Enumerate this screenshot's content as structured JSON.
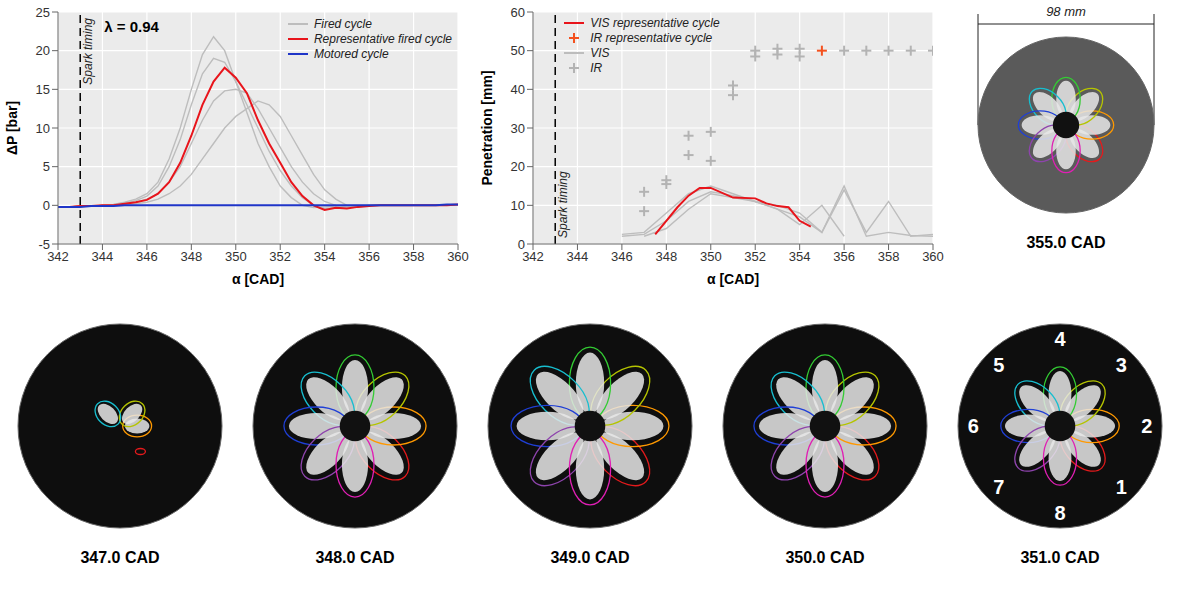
{
  "chart_data": [
    {
      "type": "line",
      "xlabel": "α [CAD]",
      "ylabel": "ΔP [bar]",
      "xlim": [
        342,
        360
      ],
      "xticks": [
        342,
        344,
        346,
        348,
        350,
        352,
        354,
        356,
        358,
        360
      ],
      "ylim": [
        -5,
        25
      ],
      "yticks": [
        -5,
        0,
        5,
        10,
        15,
        20,
        25
      ],
      "grid": true,
      "legend": "upper right",
      "annotations": [
        {
          "text": "λ = 0.94"
        },
        {
          "text": "Spark timing",
          "x": 343
        }
      ],
      "x": [
        342,
        342.5,
        343,
        343.5,
        344,
        344.5,
        345,
        345.5,
        346,
        346.5,
        347,
        347.5,
        348,
        348.5,
        349,
        349.5,
        350,
        350.5,
        351,
        351.5,
        352,
        352.5,
        353,
        353.5,
        354,
        354.5,
        355,
        355.5,
        356,
        356.5,
        357,
        357.5,
        358,
        358.5,
        359,
        359.5,
        360
      ],
      "series": [
        {
          "name": "Fired cycle",
          "color": "#bdbdbd",
          "values": [
            -0.2,
            -0.2,
            -0.1,
            -0.1,
            0,
            0.1,
            0.4,
            0.8,
            1.5,
            3,
            6,
            10,
            15,
            19.5,
            21.8,
            20,
            16,
            12,
            8,
            5,
            2.5,
            1,
            0,
            -0.3,
            -0.2,
            -0.1,
            0,
            0,
            0,
            0,
            0,
            0,
            0,
            0,
            0,
            0,
            0
          ]
        },
        {
          "name": "Fired cycle",
          "color": "#bdbdbd",
          "values": [
            -0.2,
            -0.2,
            -0.1,
            -0.1,
            0,
            0.1,
            0.3,
            0.6,
            1.2,
            2.5,
            5,
            8.5,
            13,
            17,
            19,
            18.5,
            16,
            13,
            10,
            7,
            4.5,
            2.5,
            1,
            0,
            -0.4,
            -0.3,
            -0.2,
            -0.1,
            0,
            0,
            0,
            0,
            0,
            0,
            0,
            0,
            0
          ]
        },
        {
          "name": "Fired cycle",
          "color": "#bdbdbd",
          "values": [
            -0.2,
            -0.2,
            -0.1,
            -0.1,
            0,
            0,
            0.1,
            0.2,
            0.4,
            0.8,
            1.5,
            2.5,
            4,
            6,
            8,
            10,
            11.5,
            12.5,
            13.5,
            13,
            11.5,
            9,
            6.5,
            4,
            2,
            0.8,
            0,
            -0.2,
            -0.1,
            0,
            0,
            0,
            0,
            0,
            0,
            0,
            0
          ]
        },
        {
          "name": "Fired cycle",
          "color": "#bdbdbd",
          "values": [
            -0.2,
            -0.2,
            -0.1,
            -0.1,
            0,
            0,
            0.2,
            0.4,
            0.8,
            1.5,
            3,
            5,
            8,
            11,
            13.5,
            14.8,
            15,
            14.5,
            12.5,
            10,
            7.5,
            5,
            3,
            1.5,
            0.5,
            0,
            -0.2,
            -0.1,
            0,
            0,
            0,
            0,
            0,
            0,
            0,
            0,
            0
          ]
        },
        {
          "name": "Representative fired cycle",
          "color": "#e8141b",
          "values": [
            -0.2,
            -0.2,
            -0.1,
            -0.1,
            0,
            0,
            0.2,
            0.4,
            0.7,
            1.5,
            3,
            5.5,
            9,
            13,
            16,
            17.8,
            16.5,
            14.5,
            11,
            8,
            5.5,
            3,
            1.2,
            0,
            -0.6,
            -0.3,
            -0.4,
            -0.2,
            -0.1,
            0,
            0,
            0,
            0,
            0,
            0,
            0,
            0.1
          ]
        },
        {
          "name": "Motored cycle",
          "color": "#1f35c8",
          "values": [
            -0.2,
            -0.2,
            -0.2,
            -0.1,
            -0.1,
            -0.1,
            0,
            0,
            0,
            0,
            0,
            0,
            0,
            0,
            0,
            0,
            0,
            0,
            0,
            0,
            0,
            0,
            0,
            0,
            0,
            0,
            0,
            0,
            0,
            0,
            0,
            0,
            0,
            0,
            0,
            0.1,
            0.1
          ]
        }
      ]
    },
    {
      "type": "line",
      "xlabel": "α [CAD]",
      "ylabel": "Penetration [mm]",
      "xlim": [
        342,
        360
      ],
      "xticks": [
        342,
        344,
        346,
        348,
        350,
        352,
        354,
        356,
        358,
        360
      ],
      "ylim": [
        0,
        60
      ],
      "yticks": [
        0,
        10,
        20,
        30,
        40,
        50,
        60
      ],
      "grid": true,
      "legend": "upper left",
      "annotations": [
        {
          "text": "Spark timing",
          "x": 343
        }
      ],
      "series": [
        {
          "name": "VIS representative cycle",
          "type": "line",
          "color": "#e8141b",
          "x": [
            347.5,
            348,
            348.5,
            349,
            349.5,
            350,
            351,
            352,
            352.5,
            353,
            353.5,
            354,
            354.5
          ],
          "values": [
            2.5,
            6,
            9.5,
            12.5,
            14.5,
            14.5,
            12,
            11.8,
            10.5,
            9.8,
            9.5,
            6,
            4.5
          ]
        },
        {
          "name": "IR representative cycle",
          "type": "scatter",
          "marker": "plus",
          "color": "#f4511e",
          "x": [
            355
          ],
          "values": [
            50
          ]
        },
        {
          "name": "VIS",
          "type": "line",
          "color": "#bdbdbd",
          "x": [
            346,
            347,
            348,
            349,
            350,
            351,
            352,
            353,
            354,
            355,
            356,
            357,
            358,
            359,
            360
          ],
          "values": [
            2.5,
            3,
            8,
            13,
            15,
            13,
            11,
            9,
            7,
            3,
            14,
            3,
            11,
            2,
            2.5
          ]
        },
        {
          "name": "VIS",
          "type": "line",
          "color": "#bdbdbd",
          "x": [
            346,
            347,
            348,
            349,
            350,
            351,
            352,
            353,
            354,
            355,
            356
          ],
          "values": [
            2,
            2.5,
            6,
            11,
            13.5,
            12.5,
            11,
            9,
            5,
            10,
            2
          ]
        },
        {
          "name": "VIS",
          "type": "line",
          "color": "#bdbdbd",
          "x": [
            347,
            348,
            349,
            350,
            351,
            352,
            353,
            354,
            355,
            356,
            357,
            358,
            359,
            360
          ],
          "values": [
            2,
            4,
            9,
            13,
            12,
            11,
            10,
            8,
            3,
            15,
            2,
            3,
            2.2,
            2
          ]
        },
        {
          "name": "IR",
          "type": "scatter",
          "marker": "plus",
          "color": "#b3b3b3",
          "x": [
            347,
            347,
            348,
            348,
            349,
            349,
            350,
            350,
            351,
            351,
            352,
            352,
            353,
            353,
            354,
            354,
            356,
            357,
            358,
            359,
            360
          ],
          "values": [
            8.5,
            13.5,
            15.5,
            16.5,
            23,
            28,
            21.5,
            29,
            38.5,
            41,
            48.5,
            50,
            49,
            50.5,
            48.5,
            50.5,
            50,
            50,
            50,
            50,
            50
          ]
        }
      ]
    }
  ],
  "images": {
    "width_label": "98 mm",
    "panels": [
      {
        "label": "355.0 CAD"
      },
      {
        "label": "347.0 CAD"
      },
      {
        "label": "348.0 CAD"
      },
      {
        "label": "349.0 CAD"
      },
      {
        "label": "350.0 CAD"
      },
      {
        "label": "351.0 CAD",
        "jet_numbers": [
          "1",
          "2",
          "3",
          "4",
          "5",
          "6",
          "7",
          "8"
        ]
      }
    ]
  }
}
